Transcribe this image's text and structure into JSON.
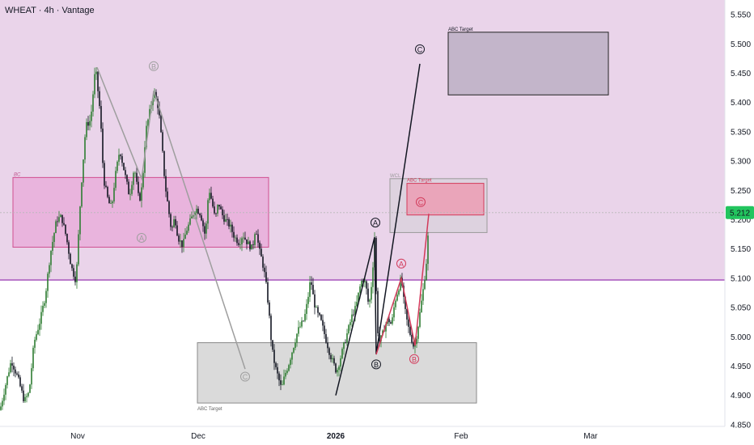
{
  "header": {
    "symbol_line": "WHEAT · 4h · Vantage"
  },
  "chart_data": {
    "type": "candlestick",
    "symbol": "WHEAT",
    "timeframe": "4h",
    "source": "Vantage",
    "current_price": "5.212",
    "ylim": [
      4.85,
      5.575
    ],
    "y_ticks": [
      "5.550",
      "5.500",
      "5.450",
      "5.400",
      "5.350",
      "5.300",
      "5.250",
      "5.200",
      "5.150",
      "5.100",
      "5.050",
      "5.000",
      "4.950",
      "4.900",
      "4.850"
    ],
    "x_ticks": [
      {
        "label": "Nov",
        "bar": 96,
        "bold": false
      },
      {
        "label": "Dec",
        "bar": 245,
        "bold": false
      },
      {
        "label": "2026",
        "bar": 415,
        "bold": true
      },
      {
        "label": "Feb",
        "bar": 570,
        "bold": false
      },
      {
        "label": "Mar",
        "bar": 730,
        "bold": false
      }
    ],
    "price_keypoints": [
      [
        0,
        4.875
      ],
      [
        8,
        4.925
      ],
      [
        14,
        4.96
      ],
      [
        22,
        4.93
      ],
      [
        30,
        4.89
      ],
      [
        36,
        4.905
      ],
      [
        42,
        4.99
      ],
      [
        50,
        5.03
      ],
      [
        56,
        5.07
      ],
      [
        62,
        5.14
      ],
      [
        70,
        5.2
      ],
      [
        76,
        5.205
      ],
      [
        82,
        5.17
      ],
      [
        88,
        5.12
      ],
      [
        94,
        5.095
      ],
      [
        100,
        5.25
      ],
      [
        106,
        5.36
      ],
      [
        112,
        5.37
      ],
      [
        118,
        5.46
      ],
      [
        124,
        5.38
      ],
      [
        128,
        5.27
      ],
      [
        134,
        5.23
      ],
      [
        138,
        5.22
      ],
      [
        142,
        5.27
      ],
      [
        148,
        5.32
      ],
      [
        154,
        5.28
      ],
      [
        160,
        5.24
      ],
      [
        166,
        5.29
      ],
      [
        172,
        5.23
      ],
      [
        176,
        5.26
      ],
      [
        180,
        5.35
      ],
      [
        186,
        5.39
      ],
      [
        190,
        5.42
      ],
      [
        196,
        5.39
      ],
      [
        200,
        5.33
      ],
      [
        204,
        5.26
      ],
      [
        208,
        5.22
      ],
      [
        212,
        5.18
      ],
      [
        216,
        5.205
      ],
      [
        220,
        5.17
      ],
      [
        226,
        5.155
      ],
      [
        230,
        5.18
      ],
      [
        236,
        5.2
      ],
      [
        242,
        5.22
      ],
      [
        248,
        5.21
      ],
      [
        254,
        5.17
      ],
      [
        258,
        5.255
      ],
      [
        262,
        5.23
      ],
      [
        266,
        5.2
      ],
      [
        270,
        5.23
      ],
      [
        274,
        5.21
      ],
      [
        278,
        5.2
      ],
      [
        284,
        5.19
      ],
      [
        290,
        5.17
      ],
      [
        296,
        5.16
      ],
      [
        300,
        5.175
      ],
      [
        306,
        5.16
      ],
      [
        312,
        5.15
      ],
      [
        316,
        5.19
      ],
      [
        320,
        5.15
      ],
      [
        324,
        5.13
      ],
      [
        328,
        5.1
      ],
      [
        332,
        5.05
      ],
      [
        336,
        4.98
      ],
      [
        340,
        4.95
      ],
      [
        344,
        4.93
      ],
      [
        348,
        4.91
      ],
      [
        352,
        4.935
      ],
      [
        356,
        4.95
      ],
      [
        360,
        4.97
      ],
      [
        364,
        4.99
      ],
      [
        368,
        5.01
      ],
      [
        372,
        5.02
      ],
      [
        376,
        5.03
      ],
      [
        380,
        5.06
      ],
      [
        384,
        5.1
      ],
      [
        388,
        5.06
      ],
      [
        392,
        5.04
      ],
      [
        396,
        5.03
      ],
      [
        400,
        5.01
      ],
      [
        404,
        4.99
      ],
      [
        408,
        4.97
      ],
      [
        412,
        4.955
      ],
      [
        416,
        4.94
      ],
      [
        420,
        4.96
      ],
      [
        424,
        4.98
      ],
      [
        428,
        5.0
      ],
      [
        432,
        5.02
      ],
      [
        436,
        5.04
      ],
      [
        440,
        5.05
      ],
      [
        444,
        5.08
      ],
      [
        448,
        5.1
      ],
      [
        452,
        5.09
      ],
      [
        456,
        5.05
      ],
      [
        460,
        5.1
      ],
      [
        463,
        5.17
      ],
      [
        466,
        5.03
      ],
      [
        468,
        4.99
      ],
      [
        472,
        5.0
      ],
      [
        476,
        5.02
      ],
      [
        480,
        5.03
      ],
      [
        484,
        5.02
      ],
      [
        488,
        5.06
      ],
      [
        492,
        5.08
      ],
      [
        496,
        5.1
      ],
      [
        500,
        5.05
      ],
      [
        504,
        5.02
      ],
      [
        508,
        5.0
      ],
      [
        512,
        4.98
      ],
      [
        516,
        5.01
      ],
      [
        520,
        5.05
      ],
      [
        524,
        5.09
      ],
      [
        528,
        5.14
      ],
      [
        530,
        5.2
      ]
    ],
    "zones": [
      {
        "name": "resistance-zone-bc",
        "label": "BC",
        "x1": 16,
        "x2": 332,
        "y_top": 5.272,
        "y_bottom": 5.153,
        "fill": "#e9b0dc",
        "stroke": "#d05090"
      },
      {
        "name": "support-zone-abc-target",
        "label": "ABC Target",
        "x1": 244,
        "x2": 589,
        "y_top": 4.99,
        "y_bottom": 4.887,
        "fill": "#d6d6d6",
        "stroke": "#8a8a8a"
      },
      {
        "name": "upper-target-zone-abc",
        "label": "ABC Target",
        "x1": 554,
        "x2": 752,
        "y_top": 5.52,
        "y_bottom": 5.413,
        "fill": "#bfb1c6",
        "stroke": "#222222"
      },
      {
        "name": "wcl-zone",
        "label": "WCL",
        "x1": 482,
        "x2": 602,
        "y_top": 5.27,
        "y_bottom": 5.178,
        "fill": "#dcd1de",
        "stroke": "#9a9a9a"
      },
      {
        "name": "red-target-zone-abc",
        "label": "ABC Target",
        "x1": 503,
        "x2": 598,
        "y_top": 5.262,
        "y_bottom": 5.208,
        "fill": "#eba0b6",
        "stroke": "#d23a5a"
      }
    ],
    "level_line": {
      "value": 5.097,
      "color": "#8e24aa"
    },
    "pink_background": {
      "from_value": 5.097,
      "color": "#ead4ea"
    },
    "wave_lines": [
      {
        "name": "gray-wave-line",
        "color": "#9e9e9e",
        "points": [
          [
            120,
            5.46
          ],
          [
            175,
            5.27
          ],
          [
            190,
            5.42
          ],
          [
            303,
            4.945
          ]
        ]
      },
      {
        "name": "black-wave-line",
        "color": "#131722",
        "points": [
          [
            415,
            4.9
          ],
          [
            463,
            5.17
          ],
          [
            465,
            4.97
          ],
          [
            519,
            5.466
          ]
        ]
      },
      {
        "name": "red-wave-line",
        "color": "#d23a5a",
        "points": [
          [
            465,
            4.97
          ],
          [
            496,
            5.1
          ],
          [
            513,
            4.985
          ],
          [
            530,
            5.21
          ]
        ]
      }
    ],
    "wave_labels": [
      {
        "text": "B",
        "bar": 190,
        "value": 5.462,
        "style": "gray"
      },
      {
        "text": "A",
        "bar": 175,
        "value": 5.169,
        "style": "gray"
      },
      {
        "text": "C",
        "bar": 303,
        "value": 4.932,
        "style": "gray"
      },
      {
        "text": "A",
        "bar": 464,
        "value": 5.195,
        "style": "black"
      },
      {
        "text": "B",
        "bar": 465,
        "value": 4.953,
        "style": "black"
      },
      {
        "text": "C",
        "bar": 519,
        "value": 5.491,
        "style": "black"
      },
      {
        "text": "A",
        "bar": 496,
        "value": 5.125,
        "style": "red"
      },
      {
        "text": "B",
        "bar": 512,
        "value": 4.962,
        "style": "red"
      },
      {
        "text": "C",
        "bar": 520,
        "value": 5.23,
        "style": "red"
      }
    ],
    "colors": {
      "up": "#2e7d32",
      "down": "#131722",
      "price_badge": "#22c55e",
      "current_price_line": "#b8b8b8",
      "gray_label": "#9e9e9e",
      "black_label": "#131722",
      "red_label": "#d23a5a"
    }
  }
}
